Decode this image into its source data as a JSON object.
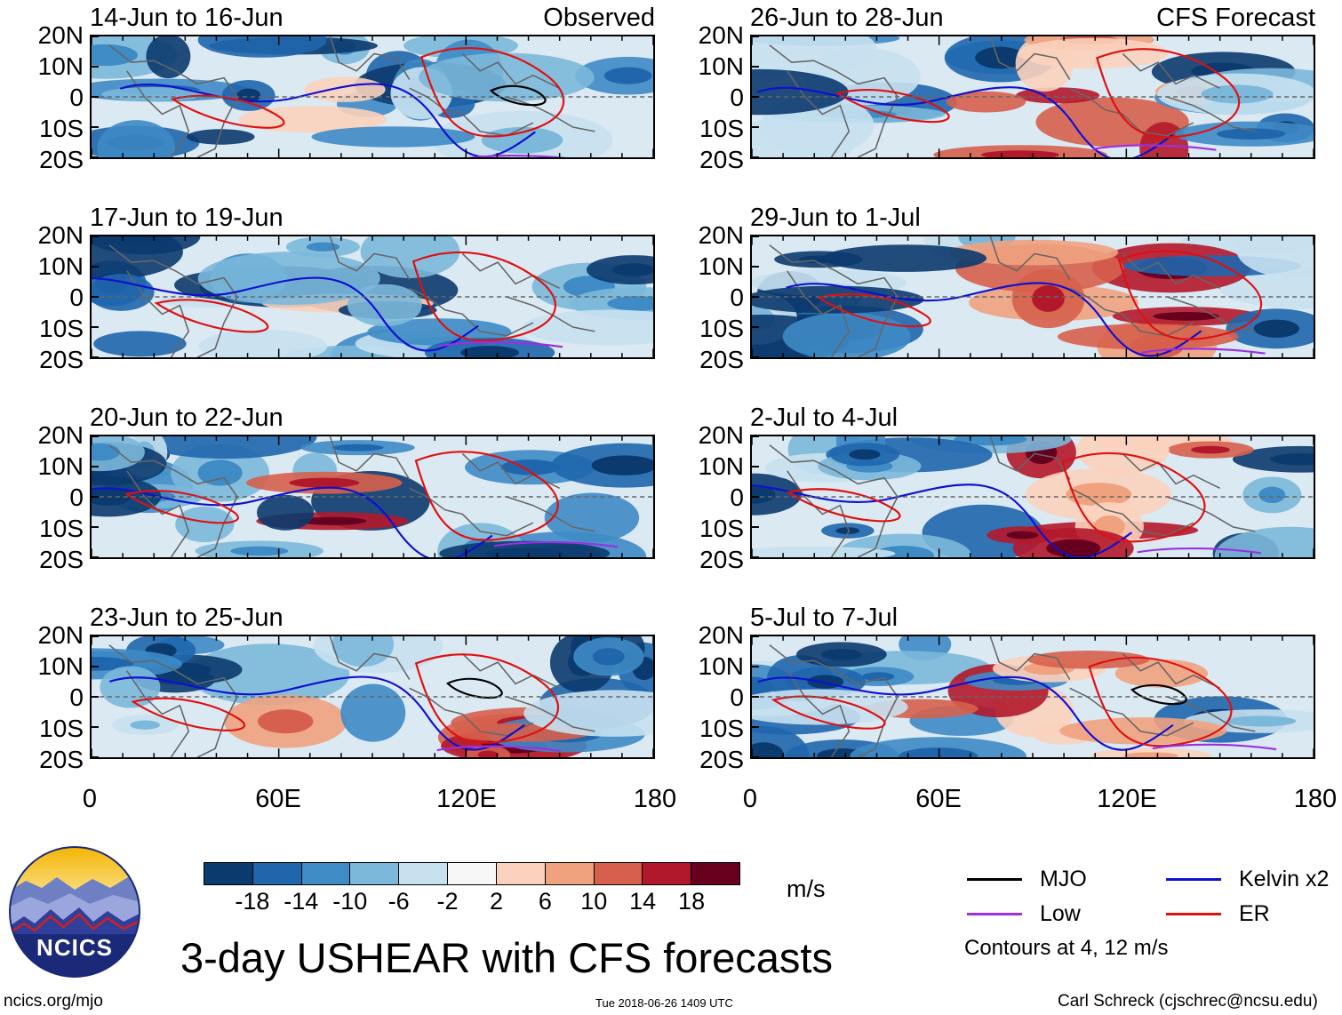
{
  "chart_data": {
    "type": "heatmap",
    "title": "3-day USHEAR with CFS forecasts",
    "units": "m/s",
    "x_axis": {
      "range": [
        0,
        180
      ],
      "ticks": [
        "0",
        "60E",
        "120E",
        "180"
      ]
    },
    "y_axis": {
      "range": [
        -20,
        20
      ],
      "ticks": [
        "20N",
        "10N",
        "0",
        "10S",
        "20S"
      ]
    },
    "colorbar": {
      "levels": [
        "-18",
        "-14",
        "-10",
        "-6",
        "-2",
        "2",
        "6",
        "10",
        "14",
        "18"
      ],
      "colors": [
        "#0b3a6e",
        "#1f66ad",
        "#3e8bc5",
        "#7bb8da",
        "#c8e1ef",
        "#f7f7f7",
        "#fbd2bd",
        "#f0a27f",
        "#d6604d",
        "#b2182b",
        "#67001f"
      ]
    },
    "panels": [
      {
        "period": "14-Jun to 16-Jun",
        "label": "Observed",
        "column": "left"
      },
      {
        "period": "17-Jun to 19-Jun",
        "label": "",
        "column": "left"
      },
      {
        "period": "20-Jun to 22-Jun",
        "label": "",
        "column": "left"
      },
      {
        "period": "23-Jun to 25-Jun",
        "label": "",
        "column": "left"
      },
      {
        "period": "26-Jun to 28-Jun",
        "label": "CFS Forecast",
        "column": "right"
      },
      {
        "period": "29-Jun to 1-Jul",
        "label": "",
        "column": "right"
      },
      {
        "period": "2-Jul to 4-Jul",
        "label": "",
        "column": "right"
      },
      {
        "period": "5-Jul to 7-Jul",
        "label": "",
        "column": "right"
      }
    ],
    "legend": [
      {
        "name": "MJO",
        "color": "#000000"
      },
      {
        "name": "Kelvin x2",
        "color": "#1010d0"
      },
      {
        "name": "Low",
        "color": "#9b30e0"
      },
      {
        "name": "ER",
        "color": "#e01010"
      }
    ],
    "contour_note": "Contours at 4, 12 m/s"
  },
  "logo_text": "NCICS",
  "footer": {
    "left": "ncics.org/mjo",
    "center": "Tue 2018-06-26 1409 UTC",
    "right": "Carl Schreck (cjschrec@ncsu.edu)"
  }
}
